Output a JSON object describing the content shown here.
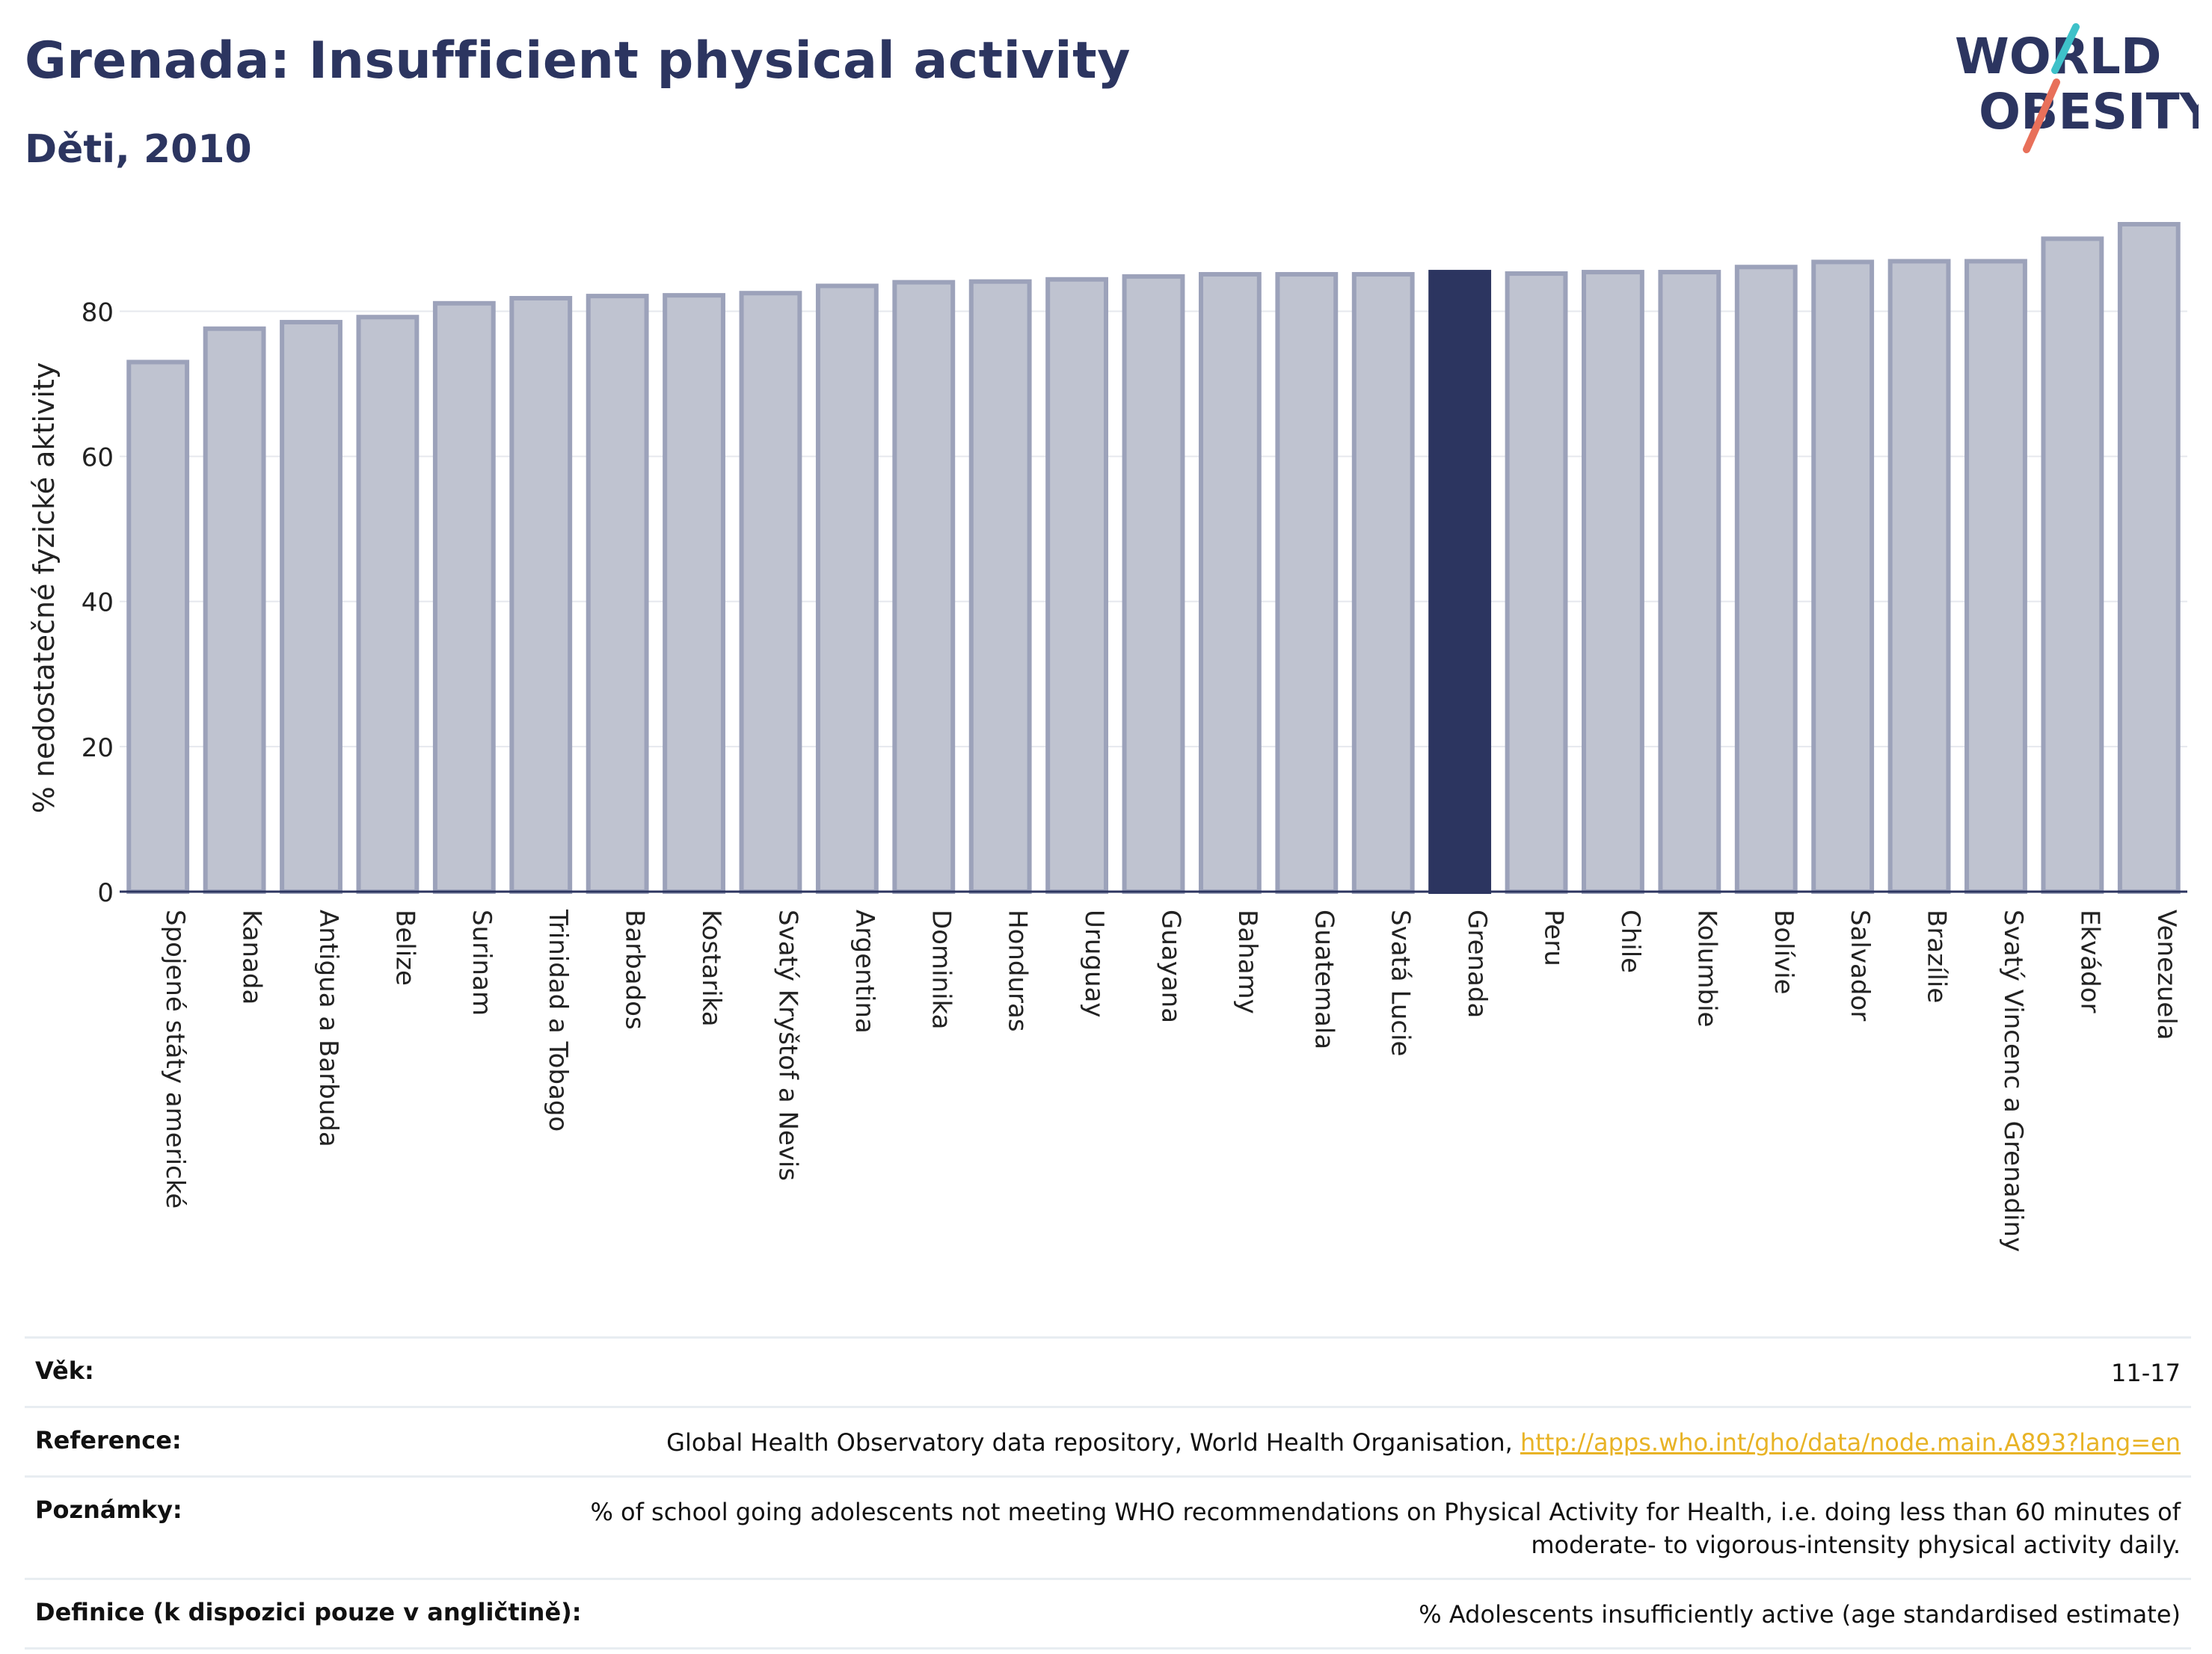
{
  "header": {
    "title": "Grenada: Insufficient physical activity",
    "subtitle": "Děti, 2010"
  },
  "logo": {
    "line1": "WORLD",
    "line2": "OBESITY",
    "slash_color_top": "#3ec1c9",
    "slash_color_bottom": "#e8705a"
  },
  "colors": {
    "bar_fill": "#bfc3d0",
    "bar_stroke": "#9ca2ba",
    "highlight": "#2c3560",
    "text": "#2c3560"
  },
  "chart_data": {
    "type": "bar",
    "ylabel": "% nedostatečné fyzické aktivity",
    "ylim": [
      0,
      92
    ],
    "yticks": [
      0,
      20,
      40,
      60,
      80
    ],
    "grid": true,
    "highlight": "Grenada",
    "categories": [
      "Spojené státy americké",
      "Kanada",
      "Antigua a Barbuda",
      "Belize",
      "Surinam",
      "Trinidad a Tobago",
      "Barbados",
      "Kostarika",
      "Svatý Kryštof a Nevis",
      "Argentina",
      "Dominika",
      "Honduras",
      "Uruguay",
      "Guayana",
      "Bahamy",
      "Guatemala",
      "Svatá Lucie",
      "Grenada",
      "Peru",
      "Chile",
      "Kolumbie",
      "Bolívie",
      "Salvador",
      "Brazílie",
      "Svatý Vincenc a Grenadiny",
      "Ekvádor",
      "Venezuela"
    ],
    "values": [
      73,
      77.6,
      78.5,
      79.2,
      81.1,
      81.8,
      82.1,
      82.2,
      82.5,
      83.5,
      84,
      84.1,
      84.4,
      84.8,
      85.1,
      85.1,
      85.1,
      85.4,
      85.2,
      85.4,
      85.4,
      86.1,
      86.8,
      86.9,
      86.9,
      90,
      92
    ]
  },
  "info": {
    "age_label": "Věk:",
    "age_value": "11-17",
    "reference_label": "Reference:",
    "reference_text": "Global Health Observatory data repository, World Health Organisation, ",
    "reference_link": "http://apps.who.int/gho/data/node.main.A893?lang=en",
    "notes_label": "Poznámky:",
    "notes_line1": "% of school going adolescents not meeting WHO recommendations on Physical Activity for Health, i.e. doing less than 60 minutes of",
    "notes_line2": "moderate- to vigorous-intensity physical activity daily.",
    "definition_label": "Definice (k dispozici pouze v angličtině):",
    "definition_value": "% Adolescents insufficiently active (age standardised estimate)"
  }
}
